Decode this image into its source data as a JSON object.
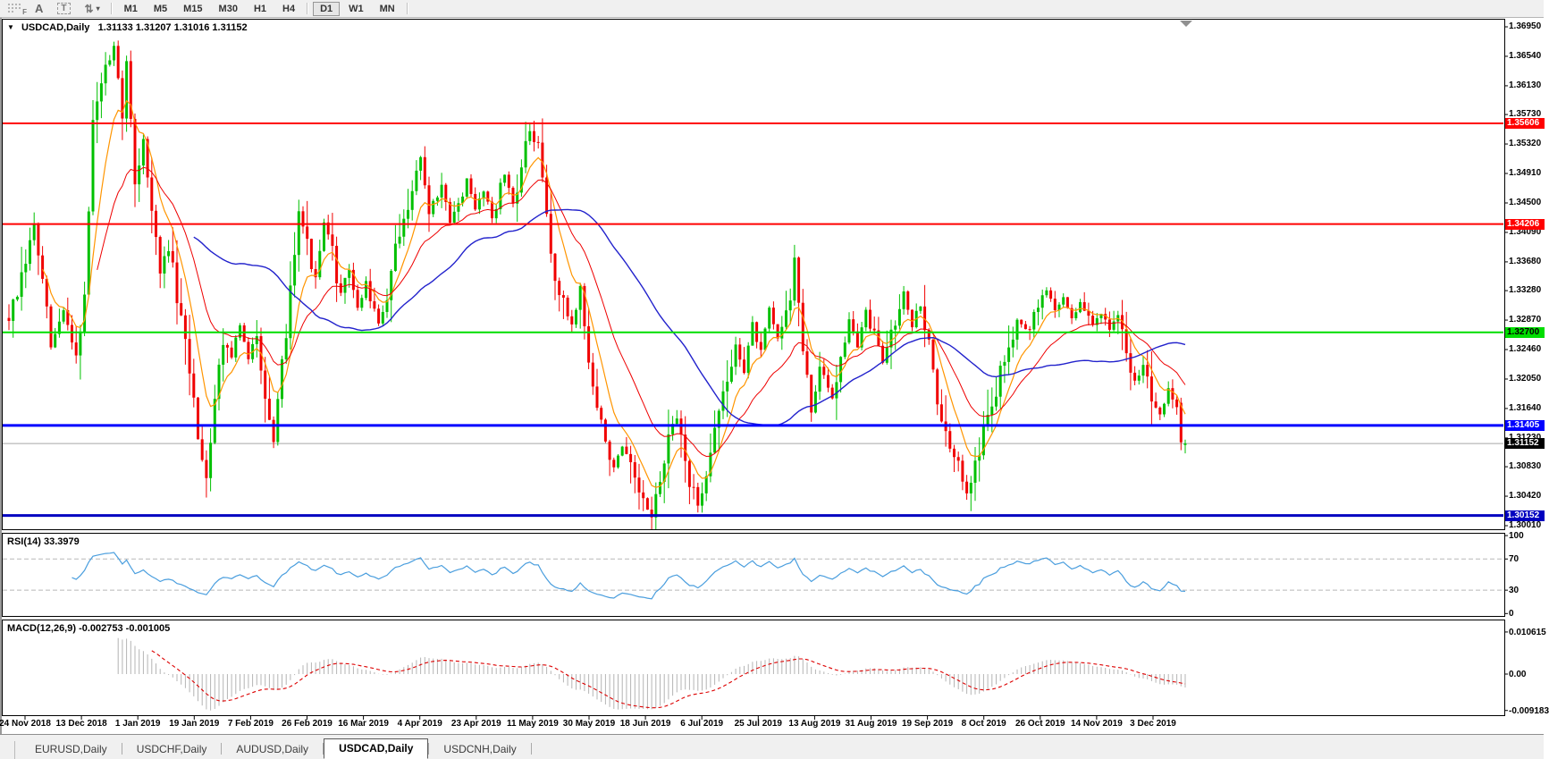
{
  "toolbar": {
    "tools": [
      {
        "name": "fibonacci-tool",
        "glyph": "F"
      },
      {
        "name": "text-tool",
        "glyph": "A"
      },
      {
        "name": "label-tool",
        "glyph": "T"
      },
      {
        "name": "arrows-tool",
        "glyph": "⇅",
        "caret": "▾"
      }
    ],
    "timeframes": [
      {
        "label": "M1",
        "active": false
      },
      {
        "label": "M5",
        "active": false
      },
      {
        "label": "M15",
        "active": false
      },
      {
        "label": "M30",
        "active": false
      },
      {
        "label": "H1",
        "active": false
      },
      {
        "label": "H4",
        "active": false
      },
      {
        "label": "D1",
        "active": true
      },
      {
        "label": "W1",
        "active": false
      },
      {
        "label": "MN",
        "active": false
      }
    ]
  },
  "chart": {
    "collapse_glyph": "▼",
    "symbol": "USDCAD,Daily",
    "ohlc_line": "1.31133 1.31207 1.31016 1.31152",
    "current_price_label": "1.31152"
  },
  "indicators": {
    "rsi": {
      "label": "RSI(14) 33.3979",
      "axis": [
        "100",
        "70",
        "30",
        "0"
      ]
    },
    "macd": {
      "label": "MACD(12,26,9) -0.002753 -0.001005",
      "axis": [
        "0.010615",
        "0.00",
        "-0.009183"
      ]
    }
  },
  "tabs": {
    "items": [
      {
        "label": "EURUSD,Daily",
        "active": false
      },
      {
        "label": "USDCHF,Daily",
        "active": false
      },
      {
        "label": "AUDUSD,Daily",
        "active": false
      },
      {
        "label": "USDCAD,Daily",
        "active": true
      },
      {
        "label": "USDCNH,Daily",
        "active": false
      }
    ]
  },
  "chart_data": {
    "type": "candlestick",
    "symbol": "USDCAD",
    "timeframe": "Daily",
    "quote": {
      "open": 1.31133,
      "high": 1.31207,
      "low": 1.31016,
      "close": 1.31152
    },
    "current_price": 1.31152,
    "y_axis_ticks": [
      1.3695,
      1.3654,
      1.3613,
      1.3573,
      1.3532,
      1.3491,
      1.345,
      1.3409,
      1.3368,
      1.3328,
      1.3287,
      1.3246,
      1.3205,
      1.3164,
      1.3123,
      1.3083,
      1.3042,
      1.3001
    ],
    "x_axis_dates": [
      "24 Nov 2018",
      "13 Dec 2018",
      "1 Jan 2019",
      "19 Jan 2019",
      "7 Feb 2019",
      "26 Feb 2019",
      "16 Mar 2019",
      "4 Apr 2019",
      "23 Apr 2019",
      "11 May 2019",
      "30 May 2019",
      "18 Jun 2019",
      "6 Jul 2019",
      "25 Jul 2019",
      "13 Aug 2019",
      "31 Aug 2019",
      "19 Sep 2019",
      "8 Oct 2019",
      "26 Oct 2019",
      "14 Nov 2019",
      "3 Dec 2019"
    ],
    "levels": [
      {
        "price": 1.35606,
        "label": "1.35606",
        "color": "#ff0000",
        "text": "#ffffff",
        "width": 2
      },
      {
        "price": 1.34206,
        "label": "1.34206",
        "color": "#ff0000",
        "text": "#ffffff",
        "width": 2
      },
      {
        "price": 1.327,
        "label": "1.32700",
        "color": "#00dd00",
        "text": "#000000",
        "width": 2
      },
      {
        "price": 1.31405,
        "label": "1.31405",
        "color": "#0000ff",
        "text": "#ffffff",
        "width": 3
      },
      {
        "price": 1.30152,
        "label": "1.30152",
        "color": "#0000c0",
        "text": "#ffffff",
        "width": 3
      }
    ],
    "colors": {
      "candle_up": "#00c000",
      "candle_down": "#f00000",
      "ma_fast": "#ff9500",
      "ma_medium": "#ee0000",
      "ma_slow": "#2222cc",
      "rsi_line": "#4a9ede",
      "rsi_levels": "#b8b8b8",
      "macd_histogram": "#b4b4b4",
      "macd_signal": "#dd0000",
      "current_price_line": "#a8a8a8",
      "current_price_bg": "#000000"
    },
    "moving_averages": [
      {
        "name": "fast",
        "period": 8,
        "color": "#ff9500"
      },
      {
        "name": "medium",
        "period": 21,
        "color": "#ee0000"
      },
      {
        "name": "slow",
        "period": 45,
        "color": "#2222cc"
      }
    ],
    "rsi": {
      "period": 14,
      "value": 33.3979,
      "levels": [
        70,
        30
      ],
      "range": [
        0,
        100
      ]
    },
    "macd": {
      "fast": 12,
      "slow": 26,
      "signal": 9,
      "value": -0.002753,
      "signal_value": -0.001005,
      "axis_max": 0.010615,
      "axis_min": -0.009183
    },
    "price_anchors": [
      [
        0,
        1.329
      ],
      [
        3,
        1.334
      ],
      [
        6,
        1.342
      ],
      [
        10,
        1.325
      ],
      [
        13,
        1.33
      ],
      [
        16,
        1.324
      ],
      [
        18,
        1.332
      ],
      [
        20,
        1.356
      ],
      [
        22,
        1.362
      ],
      [
        25,
        1.366
      ],
      [
        27,
        1.358
      ],
      [
        28,
        1.364
      ],
      [
        30,
        1.348
      ],
      [
        32,
        1.354
      ],
      [
        34,
        1.344
      ],
      [
        36,
        1.335
      ],
      [
        38,
        1.339
      ],
      [
        41,
        1.328
      ],
      [
        43,
        1.322
      ],
      [
        45,
        1.313
      ],
      [
        47,
        1.307
      ],
      [
        49,
        1.318
      ],
      [
        51,
        1.326
      ],
      [
        53,
        1.324
      ],
      [
        55,
        1.328
      ],
      [
        57,
        1.323
      ],
      [
        59,
        1.327
      ],
      [
        62,
        1.315
      ],
      [
        63,
        1.311
      ],
      [
        65,
        1.322
      ],
      [
        67,
        1.333
      ],
      [
        69,
        1.345
      ],
      [
        71,
        1.339
      ],
      [
        73,
        1.334
      ],
      [
        75,
        1.342
      ],
      [
        77,
        1.338
      ],
      [
        79,
        1.332
      ],
      [
        81,
        1.336
      ],
      [
        83,
        1.33
      ],
      [
        85,
        1.334
      ],
      [
        88,
        1.328
      ],
      [
        90,
        1.332
      ],
      [
        92,
        1.338
      ],
      [
        94,
        1.342
      ],
      [
        96,
        1.348
      ],
      [
        98,
        1.351
      ],
      [
        100,
        1.344
      ],
      [
        103,
        1.347
      ],
      [
        105,
        1.342
      ],
      [
        107,
        1.345
      ],
      [
        109,
        1.348
      ],
      [
        111,
        1.344
      ],
      [
        113,
        1.347
      ],
      [
        115,
        1.343
      ],
      [
        118,
        1.349
      ],
      [
        120,
        1.345
      ],
      [
        122,
        1.35
      ],
      [
        124,
        1.355
      ],
      [
        126,
        1.352
      ],
      [
        127,
        1.348
      ],
      [
        129,
        1.338
      ],
      [
        131,
        1.332
      ],
      [
        134,
        1.328
      ],
      [
        136,
        1.333
      ],
      [
        138,
        1.323
      ],
      [
        140,
        1.316
      ],
      [
        142,
        1.312
      ],
      [
        144,
        1.308
      ],
      [
        146,
        1.311
      ],
      [
        149,
        1.306
      ],
      [
        151,
        1.303
      ],
      [
        153,
        1.3018
      ],
      [
        155,
        1.306
      ],
      [
        157,
        1.312
      ],
      [
        159,
        1.315
      ],
      [
        161,
        1.31
      ],
      [
        162,
        1.306
      ],
      [
        164,
        1.303
      ],
      [
        166,
        1.308
      ],
      [
        168,
        1.314
      ],
      [
        171,
        1.32
      ],
      [
        173,
        1.325
      ],
      [
        175,
        1.322
      ],
      [
        177,
        1.328
      ],
      [
        179,
        1.324
      ],
      [
        181,
        1.33
      ],
      [
        183,
        1.326
      ],
      [
        186,
        1.332
      ],
      [
        187,
        1.338
      ],
      [
        189,
        1.324
      ],
      [
        191,
        1.316
      ],
      [
        193,
        1.322
      ],
      [
        196,
        1.318
      ],
      [
        198,
        1.324
      ],
      [
        200,
        1.329
      ],
      [
        202,
        1.325
      ],
      [
        204,
        1.33
      ],
      [
        206,
        1.326
      ],
      [
        208,
        1.323
      ],
      [
        211,
        1.329
      ],
      [
        213,
        1.333
      ],
      [
        215,
        1.328
      ],
      [
        217,
        1.331
      ],
      [
        219,
        1.325
      ],
      [
        221,
        1.318
      ],
      [
        223,
        1.312
      ],
      [
        226,
        1.308
      ],
      [
        228,
        1.305
      ],
      [
        230,
        1.309
      ],
      [
        232,
        1.313
      ],
      [
        234,
        1.317
      ],
      [
        236,
        1.321
      ],
      [
        238,
        1.325
      ],
      [
        240,
        1.329
      ],
      [
        243,
        1.327
      ],
      [
        245,
        1.331
      ],
      [
        247,
        1.333
      ],
      [
        249,
        1.33
      ],
      [
        251,
        1.332
      ],
      [
        253,
        1.329
      ],
      [
        255,
        1.331
      ],
      [
        258,
        1.328
      ],
      [
        260,
        1.33
      ],
      [
        262,
        1.327
      ],
      [
        264,
        1.329
      ],
      [
        266,
        1.324
      ],
      [
        268,
        1.32
      ],
      [
        270,
        1.323
      ],
      [
        272,
        1.318
      ],
      [
        274,
        1.316
      ],
      [
        276,
        1.319
      ],
      [
        278,
        1.317
      ],
      [
        280,
        1.31152
      ]
    ]
  }
}
